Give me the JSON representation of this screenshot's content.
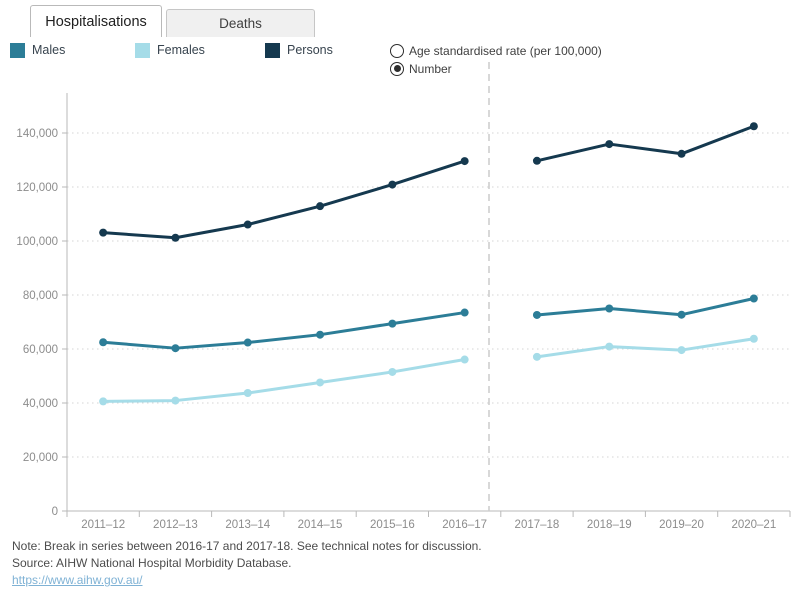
{
  "tabs": [
    {
      "label": "Hospitalisations",
      "active": true
    },
    {
      "label": "Deaths",
      "active": false
    }
  ],
  "legend": {
    "items": [
      {
        "label": "Males",
        "color": "#2c7d97"
      },
      {
        "label": "Females",
        "color": "#a5dce8"
      },
      {
        "label": "Persons",
        "color": "#15394f"
      }
    ]
  },
  "measure_toggle": {
    "options": [
      {
        "label": "Age standardised rate (per 100,000)",
        "selected": false
      },
      {
        "label": "Number",
        "selected": true
      }
    ]
  },
  "chart_data": {
    "type": "line",
    "title": "",
    "xlabel": "",
    "ylabel": "",
    "categories": [
      "2011–12",
      "2012–13",
      "2013–14",
      "2014–15",
      "2015–16",
      "2016–17",
      "2017–18",
      "2018–19",
      "2019–20",
      "2020–21"
    ],
    "series": [
      {
        "name": "Males",
        "color": "#2c7d97",
        "values": [
          62500,
          60300,
          62400,
          65300,
          69400,
          73500,
          72600,
          75000,
          72700,
          78700
        ]
      },
      {
        "name": "Females",
        "color": "#a5dce8",
        "values": [
          40600,
          40900,
          43700,
          47600,
          51500,
          56100,
          57100,
          60900,
          59600,
          63800
        ]
      },
      {
        "name": "Persons",
        "color": "#15394f",
        "values": [
          103100,
          101200,
          106100,
          112900,
          120900,
          129600,
          129700,
          135900,
          132300,
          142500
        ]
      }
    ],
    "ylim": [
      0,
      150000
    ],
    "yticks": [
      0,
      20000,
      40000,
      60000,
      80000,
      100000,
      120000,
      140000
    ],
    "ytick_labels": [
      "0",
      "20,000",
      "40,000",
      "60,000",
      "80,000",
      "100,000",
      "120,000",
      "140,000"
    ],
    "grid": "horizontal-dotted",
    "legend_position": "top-left",
    "break_after_index": 5,
    "break_between": [
      "2016–17",
      "2017–18"
    ]
  },
  "footer": {
    "note": "Note: Break in series between 2016-17 and 2017-18. See technical notes for discussion.",
    "source": "Source: AIHW National Hospital Morbidity Database.",
    "link": "https://www.aihw.gov.au/"
  }
}
